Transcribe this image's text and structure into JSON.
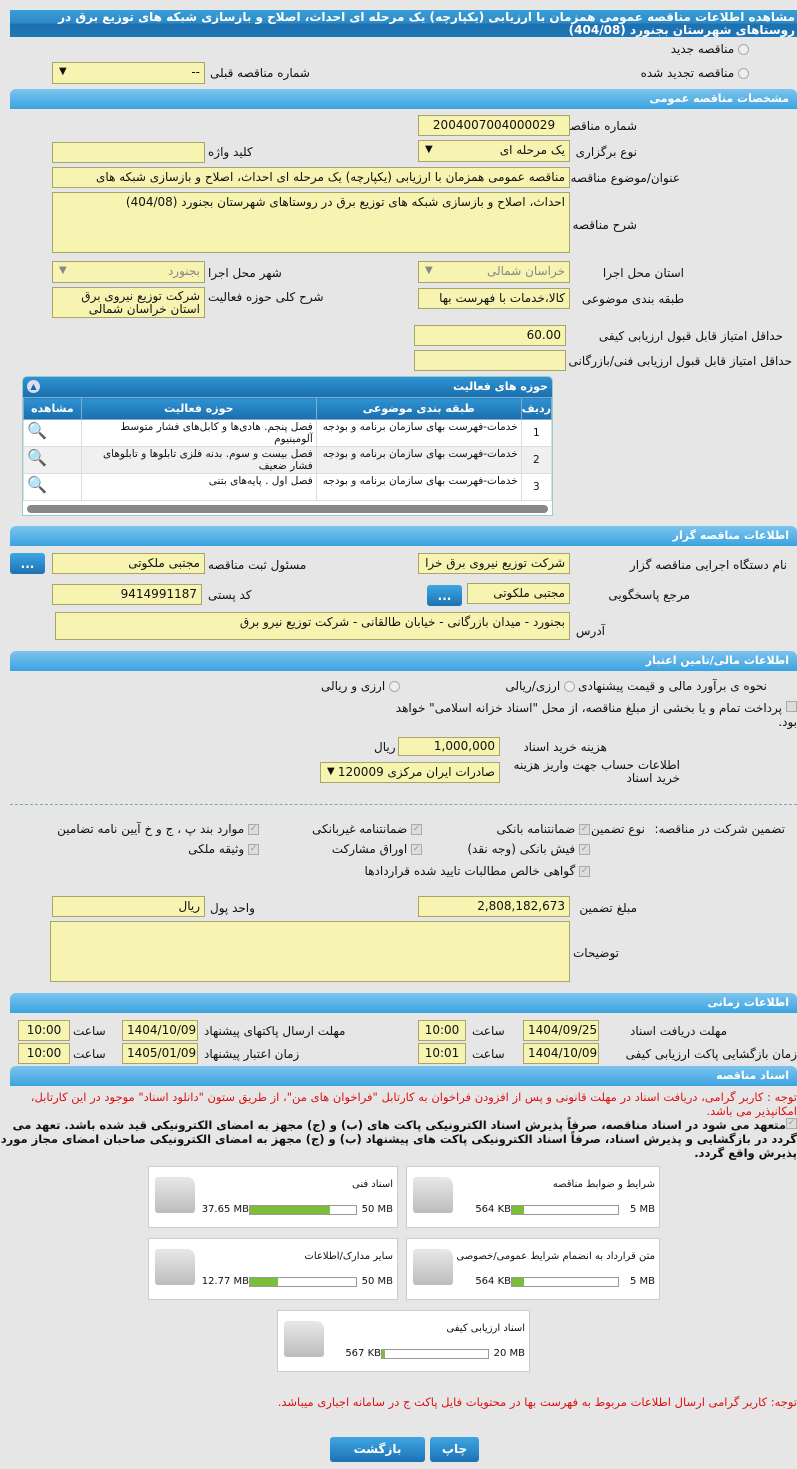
{
  "title": "مشاهده اطلاعات مناقصه عمومی همزمان با ارزیابی (یکپارچه) یک مرحله ای احداث، اصلاح و بازسازی شبکه های توزیع برق در روستاهای شهرستان بجنورد (404/08)",
  "top": {
    "new_tender": "مناقصه جدید",
    "renewed_tender": "مناقصه تجدید شده",
    "prev_number_label": "شماره مناقصه قبلی",
    "prev_number_value": "--"
  },
  "general": {
    "header": "مشخصات مناقصه عمومی",
    "number_label": "شماره مناقصه",
    "number": "2004007004000029",
    "type_label": "نوع برگزاری",
    "type": "یک مرحله ای",
    "keyword_label": "کلید واژه",
    "keyword": "",
    "subject_label": "عنوان/موضوع مناقصه",
    "subject": "مناقصه عمومی همزمان با ارزیابی (یکپارچه) یک مرحله ای احداث، اصلاح و بازسازی شبکه های",
    "desc_label": "شرح مناقصه",
    "desc": "احداث، اصلاح و بازسازی شبکه های توزیع برق در روستاهای شهرستان بجنورد (404/08)",
    "province_label": "استان محل اجرا",
    "province": "خراسان شمالی",
    "city_label": "شهر محل اجرا",
    "city": "بجنورد",
    "category_label": "طبقه بندی موضوعی",
    "category": "کالا،خدمات با فهرست بها",
    "scope_label": "شرح کلی حوزه فعالیت",
    "scope": "شرکت توزیع نیروی برق استان خراسان شمالی",
    "min_quality_label": "حداقل امتیاز قابل قبول ارزیابی کیفی",
    "min_quality": "60.00",
    "min_tech_label": "حداقل امتیاز قابل قبول ارزیابی فنی/بازرگانی",
    "min_tech": ""
  },
  "activities": {
    "header": "حوزه های فعالیت",
    "columns": [
      "ردیف",
      "طبقه بندی موضوعی",
      "حوزه فعالیت",
      "مشاهده"
    ],
    "rows": [
      {
        "n": "1",
        "cat": "خدمات-فهرست بهای سازمان برنامه و بودجه",
        "scope": "فصل پنجم. هادی‌ها و کابل‌های فشار متوسط آلومینیوم"
      },
      {
        "n": "2",
        "cat": "خدمات-فهرست بهای سازمان برنامه و بودجه",
        "scope": "فصل بیست و سوم. بدنه فلزی تابلوها و تابلوهای فشار ضعیف"
      },
      {
        "n": "3",
        "cat": "خدمات-فهرست بهای سازمان برنامه و بودجه",
        "scope": "فصل اول . پایه‌های بتنی"
      }
    ]
  },
  "organizer": {
    "header": "اطلاعات مناقصه گزار",
    "executor_label": "نام دستگاه اجرایی مناقصه گزار",
    "executor": "شرکت توزیع نیروی برق خرا",
    "responsible_label": "مسئول ثبت مناقصه",
    "responsible": "مجتبی ملکوتی",
    "more": "...",
    "reference_label": "مرجع پاسخگویی",
    "reference": "مجتبی ملکوتی",
    "postal_label": "کد پستی",
    "postal": "9414991187",
    "address_label": "آدرس",
    "address": "بجنورد - میدان بازرگانی - خیابان طالقانی - شرکت توزیع نیرو برق"
  },
  "finance": {
    "header": "اطلاعات مالی/تامین اعتبار",
    "estimate_label": "نحوه ی برآورد مالی و قیمت پیشنهادی",
    "opt1": "ارزی/ریالی",
    "opt2": "ارزی و ریالی",
    "treasury": "پرداخت تمام و یا بخشی از مبلغ مناقصه، از محل \"اسناد خزانه اسلامی\" خواهد بود.",
    "fee_label": "هزینه خرید اسناد",
    "fee": "1,000,000",
    "fee_unit": "ریال",
    "account_label": "اطلاعات حساب جهت واریز هزینه خرید اسناد",
    "account": "صادرات ایران مرکزی 120009"
  },
  "guarantee": {
    "label": "تضمین شرکت در مناقصه:",
    "type_label": "نوع تضمین",
    "items": [
      "ضمانتنامه بانکی",
      "ضمانتنامه غیربانکی",
      "موارد بند پ ، ج و خ آیین نامه تضامین",
      "فیش بانکی (وجه نقد)",
      "اوراق مشارکت",
      "وثیقه ملکی",
      "گواهی خالص مطالبات تایید شده قراردادها"
    ],
    "amount_label": "مبلغ تضمین",
    "amount": "2,808,182,673",
    "unit_label": "واحد پول",
    "unit": "ریال",
    "notes_label": "توضیحات"
  },
  "timing": {
    "header": "اطلاعات زمانی",
    "hour": "ساعت",
    "receive_label": "مهلت دریافت اسناد",
    "receive_date": "1404/09/25",
    "receive_time": "10:00",
    "send_label": "مهلت ارسال پاکتهای پیشنهاد",
    "send_date": "1404/10/09",
    "send_time": "10:00",
    "open_label": "زمان بازگشایی پاکت ارزیابی کیفی",
    "open_date": "1404/10/09",
    "open_time": "10:01",
    "valid_label": "زمان اعتبار پیشنهاد",
    "valid_date": "1405/01/09",
    "valid_time": "10:00"
  },
  "docs": {
    "header": "اسناد مناقصه",
    "note": "توجه : کاربر گرامی، دریافت اسناد در مهلت قانونی و پس از افزودن فراخوان به کارتابل \"فراخوان های من\"، از طریق ستون \"دانلود اسناد\" موجود در این کارتابل، امکانپذیر می باشد.",
    "commit": "متعهد می شود در اسناد مناقصه، صرفاً پذیرش اسناد الکترونیکی پاکت های (ب) و (ج) مجهز به امضای الکترونیکی قید شده باشد. تعهد می گردد در بازگشایی و پذیرش اسناد، صرفاً اسناد الکترونیکی پاکت های پیشنهاد (ب) و (ج) مجهز به امضای الکترونیکی صاحبان امضای مجاز مورد پذیرش واقع گردد.",
    "files": [
      {
        "name": "شرایط و ضوابط مناقصه",
        "size": "564 KB",
        "max": "5 MB",
        "pct": 11
      },
      {
        "name": "اسناد فنی",
        "size": "37.65 MB",
        "max": "50 MB",
        "pct": 75
      },
      {
        "name": "متن قرارداد به انضمام شرایط عمومی/خصوصی",
        "size": "564 KB",
        "max": "5 MB",
        "pct": 11
      },
      {
        "name": "سایر مدارک/اطلاعات",
        "size": "12.77 MB",
        "max": "50 MB",
        "pct": 26
      },
      {
        "name": "اسناد ارزیابی کیفی",
        "size": "567 KB",
        "max": "20 MB",
        "pct": 3
      }
    ],
    "footer_note": "توجه: کاربر گرامی ارسال اطلاعات مربوط به فهرست بها در محتویات فایل پاکت ج در سامانه اجباری میباشد."
  },
  "actions": {
    "print": "چاپ",
    "back": "بازگشت"
  }
}
